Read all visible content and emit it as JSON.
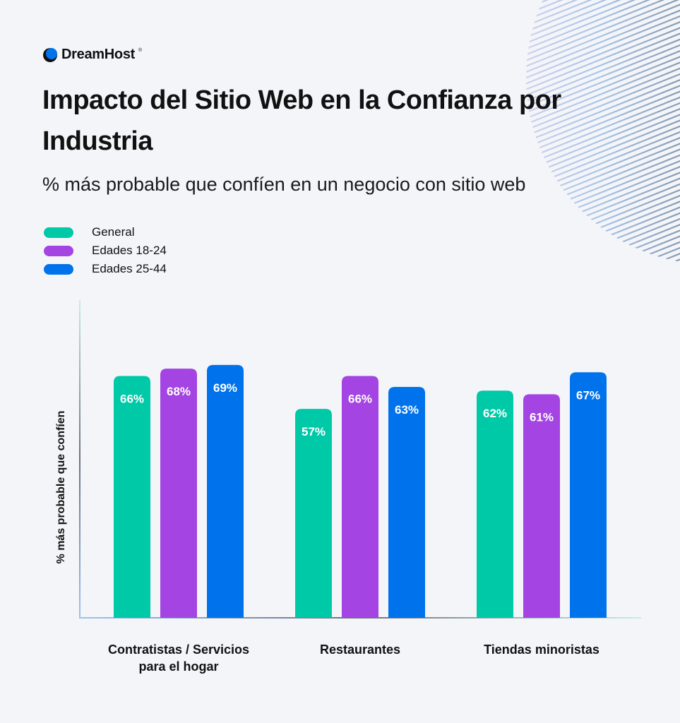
{
  "brand": {
    "name": "DreamHost",
    "reg_mark": "®",
    "accent": "#0073ec"
  },
  "header": {
    "title": "Impacto del Sitio Web en la Confianza por Industria",
    "subtitle": "% más probable que confíen en un negocio con sitio web"
  },
  "chart_data": {
    "type": "bar",
    "title": "Impacto del Sitio Web en la Confianza por Industria",
    "subtitle": "% más probable que confíen en un negocio con sitio web",
    "xlabel": "",
    "ylabel": "% más probable que confíen",
    "ylim": [
      0,
      85
    ],
    "grid": false,
    "legend_position": "top-left",
    "categories": [
      "Contratistas / Servicios\npara el hogar",
      "Restaurantes",
      "Tiendas minoristas"
    ],
    "category_lines": [
      [
        "Contratistas / Servicios",
        "para el hogar"
      ],
      [
        "Restaurantes"
      ],
      [
        "Tiendas minoristas"
      ]
    ],
    "series": [
      {
        "name": "General",
        "color": "#00c9a7",
        "values": [
          66,
          57,
          62
        ],
        "labels": [
          "66%",
          "57%",
          "62%"
        ]
      },
      {
        "name": "Edades 18-24",
        "color": "#a444e3",
        "values": [
          68,
          66,
          61
        ],
        "labels": [
          "68%",
          "66%",
          "61%"
        ]
      },
      {
        "name": "Edades 25-44",
        "color": "#0073ec",
        "values": [
          69,
          63,
          67
        ],
        "labels": [
          "69%",
          "63%",
          "67%"
        ]
      }
    ]
  }
}
